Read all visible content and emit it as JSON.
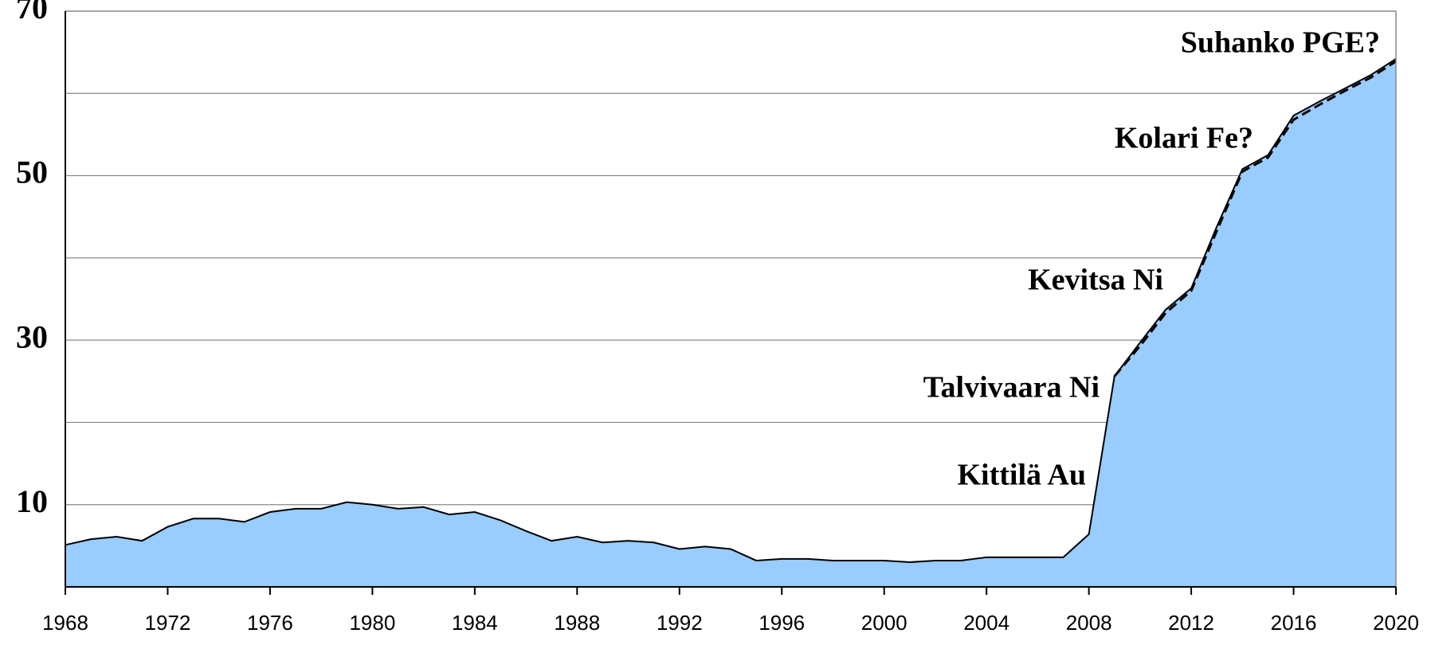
{
  "chart_data": {
    "type": "area",
    "x": [
      1968,
      1969,
      1970,
      1971,
      1972,
      1973,
      1974,
      1975,
      1976,
      1977,
      1978,
      1979,
      1980,
      1981,
      1982,
      1983,
      1984,
      1985,
      1986,
      1987,
      1988,
      1989,
      1990,
      1991,
      1992,
      1993,
      1994,
      1995,
      1996,
      1997,
      1998,
      1999,
      2000,
      2001,
      2002,
      2003,
      2004,
      2005,
      2006,
      2007,
      2008,
      2009,
      2010,
      2011,
      2012,
      2013,
      2014,
      2015,
      2016,
      2017,
      2018,
      2019,
      2020
    ],
    "series": [
      {
        "color": "#99ccff",
        "values": [
          5.1,
          5.8,
          6.1,
          5.6,
          7.3,
          8.3,
          8.3,
          7.9,
          9.1,
          9.5,
          9.5,
          10.3,
          10.0,
          9.5,
          9.7,
          8.8,
          9.1,
          8.1,
          6.8,
          5.6,
          6.1,
          5.4,
          5.6,
          5.4,
          4.6,
          4.9,
          4.6,
          3.2,
          3.4,
          3.4,
          3.2,
          3.2,
          3.2,
          3.0,
          3.2,
          3.2,
          3.6,
          3.6,
          3.6,
          3.6,
          6.4,
          25.6,
          29.7,
          33.7,
          36.3,
          43.8,
          50.8,
          52.5,
          57.3,
          59.0,
          60.6,
          62.2,
          64.2
        ]
      },
      {
        "color": "#000000",
        "dashed": true,
        "values": [
          null,
          null,
          null,
          null,
          null,
          null,
          null,
          null,
          null,
          null,
          null,
          null,
          null,
          null,
          null,
          null,
          null,
          null,
          null,
          null,
          null,
          null,
          null,
          null,
          null,
          null,
          null,
          null,
          null,
          null,
          null,
          null,
          null,
          null,
          null,
          null,
          null,
          null,
          null,
          null,
          null,
          25.6,
          29.3,
          33.3,
          36.0,
          43.3,
          50.5,
          52.2,
          56.8,
          58.6,
          60.3,
          61.9,
          63.9
        ]
      }
    ],
    "xlim": [
      1968,
      2020
    ],
    "xticks": [
      1968,
      1972,
      1976,
      1980,
      1984,
      1988,
      1992,
      1996,
      2000,
      2004,
      2008,
      2012,
      2016,
      2020
    ],
    "ylim": [
      0,
      70
    ],
    "yticks": [
      10,
      30,
      50,
      70
    ],
    "ygrid": [
      10,
      20,
      30,
      40,
      50,
      60
    ],
    "annotations": [
      "Suhanko PGE?",
      "Kolari Fe?",
      "Kevitsa Ni",
      "Talvivaara Ni",
      "Kittilä Au"
    ]
  }
}
